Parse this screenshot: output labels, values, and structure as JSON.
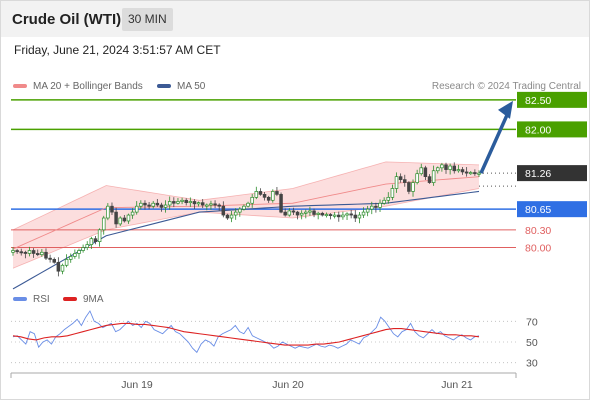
{
  "header": {
    "title": "Crude Oil (WTI)",
    "interval": "30 MIN",
    "timestamp": "Friday, June 21, 2024 3:51:57 AM CET"
  },
  "legend": {
    "bollinger": "MA 20 + Bollinger Bands",
    "ma50": "MA 50",
    "rsi": "RSI",
    "rsi_ma": "9MA",
    "copyright": "Research © 2024 Trading Central"
  },
  "colors": {
    "resistance": "#4aa000",
    "current": "#333333",
    "pivot": "#2f6fe4",
    "support": "#e06060",
    "bollinger": "#f08a8a",
    "ma50": "#3c5a95",
    "rsi": "#6a8ee6",
    "rsi_ma": "#dd2222",
    "candle_up": "#2a8c2a",
    "candle_down": "#444444",
    "arrow": "#2b5c9c"
  },
  "chart_data": [
    {
      "type": "candlestick",
      "title": "Crude Oil (WTI)",
      "timeframe": "30 MIN",
      "x_ticks": [
        "Jun 19",
        "Jun 20",
        "Jun 21"
      ],
      "ylim": [
        79.4,
        82.65
      ],
      "current_price": 81.26,
      "levels": [
        {
          "label": "82.50",
          "value": 82.5,
          "kind": "resistance"
        },
        {
          "label": "82.00",
          "value": 82.0,
          "kind": "resistance"
        },
        {
          "label": "81.26",
          "value": 81.26,
          "kind": "current"
        },
        {
          "label": "80.65",
          "value": 80.65,
          "kind": "pivot"
        },
        {
          "label": "80.30",
          "value": 80.3,
          "kind": "support"
        },
        {
          "label": "80.00",
          "value": 80.0,
          "kind": "support"
        }
      ],
      "arrow": {
        "from": 81.26,
        "to": 82.5,
        "direction": "up"
      },
      "close_estimate": [
        79.95,
        79.93,
        79.92,
        79.9,
        79.95,
        79.9,
        79.88,
        79.92,
        79.82,
        79.8,
        79.75,
        79.6,
        79.7,
        79.8,
        79.85,
        79.9,
        79.95,
        80.0,
        80.05,
        80.15,
        80.1,
        80.3,
        80.5,
        80.7,
        80.6,
        80.4,
        80.5,
        80.45,
        80.55,
        80.6,
        80.7,
        80.75,
        80.72,
        80.7,
        80.75,
        80.72,
        80.68,
        80.72,
        80.78,
        80.75,
        80.78,
        80.8,
        80.76,
        80.78,
        80.74,
        80.76,
        80.72,
        80.72,
        80.74,
        80.72,
        80.7,
        80.55,
        80.5,
        80.55,
        80.6,
        80.65,
        80.7,
        80.75,
        80.85,
        80.95,
        80.9,
        80.85,
        80.8,
        80.95,
        80.9,
        80.6,
        80.55,
        80.62,
        80.6,
        80.55,
        80.58,
        80.6,
        80.62,
        80.56,
        80.58,
        80.55,
        80.56,
        80.54,
        80.55,
        80.52,
        80.55,
        80.57,
        80.55,
        80.5,
        80.55,
        80.6,
        80.65,
        80.7,
        80.68,
        80.75,
        80.8,
        80.85,
        81.0,
        81.2,
        81.15,
        81.1,
        80.95,
        81.1,
        81.25,
        81.35,
        81.2,
        81.1,
        81.3,
        81.35,
        81.4,
        81.32,
        81.38,
        81.3,
        81.32,
        81.28,
        81.26,
        81.27,
        81.25,
        81.26
      ],
      "ma50_estimate": [
        79.3,
        80.2,
        80.6,
        80.7,
        80.75,
        80.95
      ],
      "bollinger_band_estimate": {
        "upper": [
          80.3,
          81.05,
          80.8,
          81.0,
          81.45,
          81.4
        ],
        "lower": [
          79.65,
          80.3,
          80.6,
          80.5,
          80.7,
          81.0
        ]
      },
      "ylabel": ""
    },
    {
      "type": "line",
      "x_ticks": [
        "Jun 19",
        "Jun 20",
        "Jun 21"
      ],
      "ylim": [
        20,
        80
      ],
      "y_ticks": [
        70,
        50,
        30
      ],
      "series": [
        {
          "name": "RSI",
          "values": [
            55,
            56,
            52,
            48,
            60,
            58,
            45,
            50,
            52,
            48,
            55,
            58,
            62,
            65,
            68,
            72,
            66,
            74,
            80,
            70,
            68,
            64,
            66,
            68,
            60,
            62,
            66,
            70,
            66,
            68,
            64,
            70,
            68,
            62,
            60,
            58,
            62,
            66,
            60,
            58,
            54,
            50,
            44,
            40,
            48,
            52,
            50,
            46,
            55,
            58,
            60,
            62,
            66,
            60,
            58,
            64,
            56,
            54,
            52,
            50,
            48,
            44,
            46,
            50,
            48,
            46,
            44,
            46,
            45,
            44,
            46,
            48,
            46,
            45,
            47,
            46,
            44,
            46,
            48,
            52,
            50,
            48,
            54,
            56,
            60,
            64,
            74,
            70,
            64,
            58,
            55,
            60,
            62,
            68,
            60,
            56,
            54,
            58,
            62,
            58,
            60,
            56,
            54,
            52,
            55,
            57,
            54,
            52,
            55,
            56
          ]
        },
        {
          "name": "9MA",
          "values": [
            56,
            55,
            53,
            52,
            54,
            55,
            55,
            56,
            58,
            60,
            62,
            64,
            66,
            67,
            68,
            68,
            67,
            67,
            66,
            65,
            64,
            62,
            60,
            59,
            58,
            57,
            56,
            55,
            54,
            53,
            52,
            51,
            50,
            49,
            48,
            47,
            47,
            47,
            47,
            48,
            48,
            49,
            50,
            52,
            54,
            56,
            58,
            60,
            62,
            63,
            63,
            62,
            61,
            60,
            59,
            58,
            57,
            57,
            56,
            56,
            55
          ]
        }
      ]
    }
  ]
}
